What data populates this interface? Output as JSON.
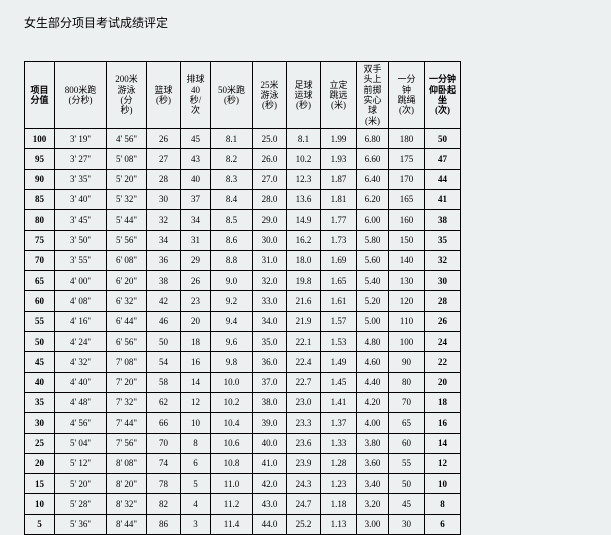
{
  "title": "女生部分项目考试成绩评定",
  "table": {
    "headers": [
      "项目\n分值",
      "800米跑\n(分秒)",
      "200米\n游泳\n(分\n秒)",
      "篮球\n(秒)",
      "排球\n40\n秒/\n次",
      "50米跑\n(秒)",
      "25米\n游泳\n(秒)",
      "足球\n运球\n(秒)",
      "立定\n跳远\n(米)",
      "双手\n头上\n前掷\n实心\n球\n(米)",
      "一分\n钟\n跳绳\n(次)",
      "一分钟\n仰卧起\n坐\n(次)"
    ],
    "bold_cols": [
      0,
      11
    ],
    "rows": [
      [
        "100",
        "3' 19\"",
        "4' 56\"",
        "26",
        "45",
        "8.1",
        "25.0",
        "8.1",
        "1.99",
        "6.80",
        "180",
        "50"
      ],
      [
        "95",
        "3' 27\"",
        "5' 08\"",
        "27",
        "43",
        "8.2",
        "26.0",
        "10.2",
        "1.93",
        "6.60",
        "175",
        "47"
      ],
      [
        "90",
        "3' 35\"",
        "5' 20\"",
        "28",
        "40",
        "8.3",
        "27.0",
        "12.3",
        "1.87",
        "6.40",
        "170",
        "44"
      ],
      [
        "85",
        "3' 40\"",
        "5' 32\"",
        "30",
        "37",
        "8.4",
        "28.0",
        "13.6",
        "1.81",
        "6.20",
        "165",
        "41"
      ],
      [
        "80",
        "3' 45\"",
        "5' 44\"",
        "32",
        "34",
        "8.5",
        "29.0",
        "14.9",
        "1.77",
        "6.00",
        "160",
        "38"
      ],
      [
        "75",
        "3' 50\"",
        "5' 56\"",
        "34",
        "31",
        "8.6",
        "30.0",
        "16.2",
        "1.73",
        "5.80",
        "150",
        "35"
      ],
      [
        "70",
        "3' 55\"",
        "6' 08\"",
        "36",
        "29",
        "8.8",
        "31.0",
        "18.0",
        "1.69",
        "5.60",
        "140",
        "32"
      ],
      [
        "65",
        "4' 00\"",
        "6' 20\"",
        "38",
        "26",
        "9.0",
        "32.0",
        "19.8",
        "1.65",
        "5.40",
        "130",
        "30"
      ],
      [
        "60",
        "4' 08\"",
        "6' 32\"",
        "42",
        "23",
        "9.2",
        "33.0",
        "21.6",
        "1.61",
        "5.20",
        "120",
        "28"
      ],
      [
        "55",
        "4' 16\"",
        "6' 44\"",
        "46",
        "20",
        "9.4",
        "34.0",
        "21.9",
        "1.57",
        "5.00",
        "110",
        "26"
      ],
      [
        "50",
        "4' 24\"",
        "6' 56\"",
        "50",
        "18",
        "9.6",
        "35.0",
        "22.1",
        "1.53",
        "4.80",
        "100",
        "24"
      ],
      [
        "45",
        "4' 32\"",
        "7' 08\"",
        "54",
        "16",
        "9.8",
        "36.0",
        "22.4",
        "1.49",
        "4.60",
        "90",
        "22"
      ],
      [
        "40",
        "4' 40\"",
        "7' 20\"",
        "58",
        "14",
        "10.0",
        "37.0",
        "22.7",
        "1.45",
        "4.40",
        "80",
        "20"
      ],
      [
        "35",
        "4' 48\"",
        "7' 32\"",
        "62",
        "12",
        "10.2",
        "38.0",
        "23.0",
        "1.41",
        "4.20",
        "70",
        "18"
      ],
      [
        "30",
        "4' 56\"",
        "7' 44\"",
        "66",
        "10",
        "10.4",
        "39.0",
        "23.3",
        "1.37",
        "4.00",
        "65",
        "16"
      ],
      [
        "25",
        "5' 04\"",
        "7' 56\"",
        "70",
        "8",
        "10.6",
        "40.0",
        "23.6",
        "1.33",
        "3.80",
        "60",
        "14"
      ],
      [
        "20",
        "5' 12\"",
        "8' 08\"",
        "74",
        "6",
        "10.8",
        "41.0",
        "23.9",
        "1.28",
        "3.60",
        "55",
        "12"
      ],
      [
        "15",
        "5' 20\"",
        "8' 20\"",
        "78",
        "5",
        "11.0",
        "42.0",
        "24.3",
        "1.23",
        "3.40",
        "50",
        "10"
      ],
      [
        "10",
        "5' 28\"",
        "8' 32\"",
        "82",
        "4",
        "11.2",
        "43.0",
        "24.7",
        "1.18",
        "3.20",
        "45",
        "8"
      ],
      [
        "5",
        "5' 36\"",
        "8' 44\"",
        "86",
        "3",
        "11.4",
        "44.0",
        "25.2",
        "1.13",
        "3.00",
        "30",
        "6"
      ]
    ]
  }
}
